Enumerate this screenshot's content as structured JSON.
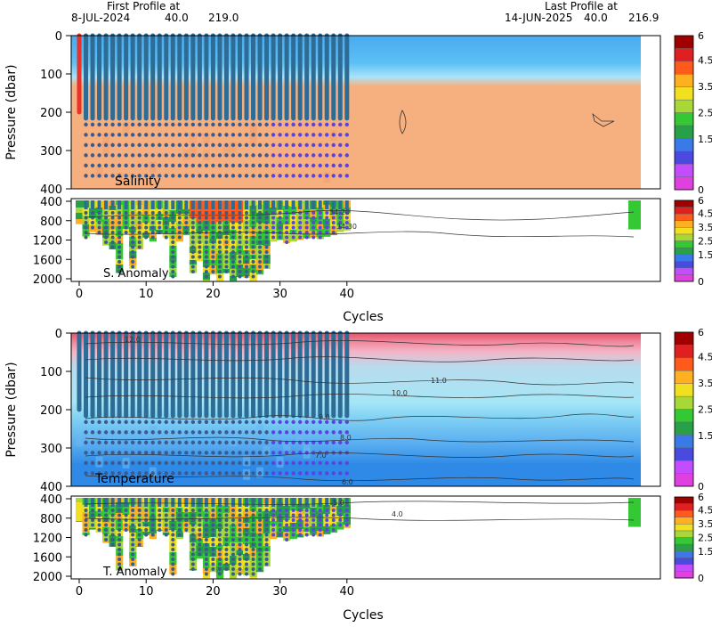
{
  "header": {
    "first_label": "First Profile at",
    "first_date": "8-JUL-2024",
    "first_lat": "40.0",
    "first_lon": "219.0",
    "last_label": "Last Profile at",
    "last_date": "14-JUN-2025",
    "last_lat": "40.0",
    "last_lon": "216.9"
  },
  "colors": {
    "colorbar": [
      "#e040e0",
      "#c44cff",
      "#4a4ae0",
      "#3a7ae8",
      "#28a048",
      "#34c834",
      "#a8d838",
      "#f0e020",
      "#ffb020",
      "#ff5a1a",
      "#e02020",
      "#a00000"
    ],
    "profile_line": "#2e6c96",
    "profile_dot_early": "#3a5a90",
    "profile_dot_late": "#5a44e0",
    "first_profile": "#e8322a"
  },
  "chart_data": [
    {
      "type": "heatmap",
      "title": "Salinity",
      "xlabel": "",
      "ylabel": "Pressure (dbar)",
      "xlim": [
        -1,
        42.5
      ],
      "ylim": [
        400,
        0
      ],
      "yticks": [
        "0",
        "100",
        "200",
        "300",
        "400"
      ],
      "xticks": [],
      "cycles": [
        0,
        1,
        2,
        3,
        4,
        5,
        6,
        7,
        8,
        9,
        10,
        11,
        12,
        13,
        14,
        15,
        16,
        17,
        18,
        19,
        20,
        21,
        22,
        23,
        24,
        25,
        26,
        27,
        28,
        29,
        30,
        31,
        32,
        33,
        34,
        35,
        36,
        37,
        38,
        39,
        40
      ],
      "colorbar_ticks": [
        "6",
        "4.5",
        "3.5",
        "2.5",
        "1.5",
        "0"
      ],
      "contour_labels": []
    },
    {
      "type": "heatmap",
      "title": "S. Anomaly",
      "xlabel": "Cycles",
      "ylabel": "",
      "xlim": [
        -1,
        42.5
      ],
      "ylim": [
        2000,
        400
      ],
      "yticks": [
        "400",
        "800",
        "1200",
        "1600",
        "2000"
      ],
      "xticks": [
        "0",
        "10",
        "20",
        "30",
        "40"
      ],
      "colorbar_ticks": [
        "6",
        "4.5",
        "3.5",
        "2.5",
        "1.5",
        "0"
      ],
      "contour_labels": [
        "34.20",
        "34.30"
      ]
    },
    {
      "type": "heatmap",
      "title": "Temperature",
      "xlabel": "",
      "ylabel": "Pressure (dbar)",
      "xlim": [
        -1,
        42.5
      ],
      "ylim": [
        400,
        0
      ],
      "yticks": [
        "0",
        "100",
        "200",
        "300",
        "400"
      ],
      "xticks": [],
      "colorbar_ticks": [
        "6",
        "4.5",
        "3.5",
        "2.5",
        "1.5",
        "0"
      ],
      "contour_labels": [
        "12.0",
        "11.0",
        "10.0",
        "9.0",
        "8.0",
        "7.0",
        "6.0"
      ]
    },
    {
      "type": "heatmap",
      "title": "T. Anomaly",
      "xlabel": "Cycles",
      "ylabel": "",
      "xlim": [
        -1,
        42.5
      ],
      "ylim": [
        2000,
        400
      ],
      "yticks": [
        "400",
        "800",
        "1200",
        "1600",
        "2000"
      ],
      "xticks": [
        "0",
        "10",
        "20",
        "30",
        "40"
      ],
      "colorbar_ticks": [
        "6",
        "4.5",
        "3.5",
        "2.5",
        "1.5",
        "0"
      ],
      "contour_labels": [
        "5.0",
        "4.0"
      ]
    }
  ]
}
